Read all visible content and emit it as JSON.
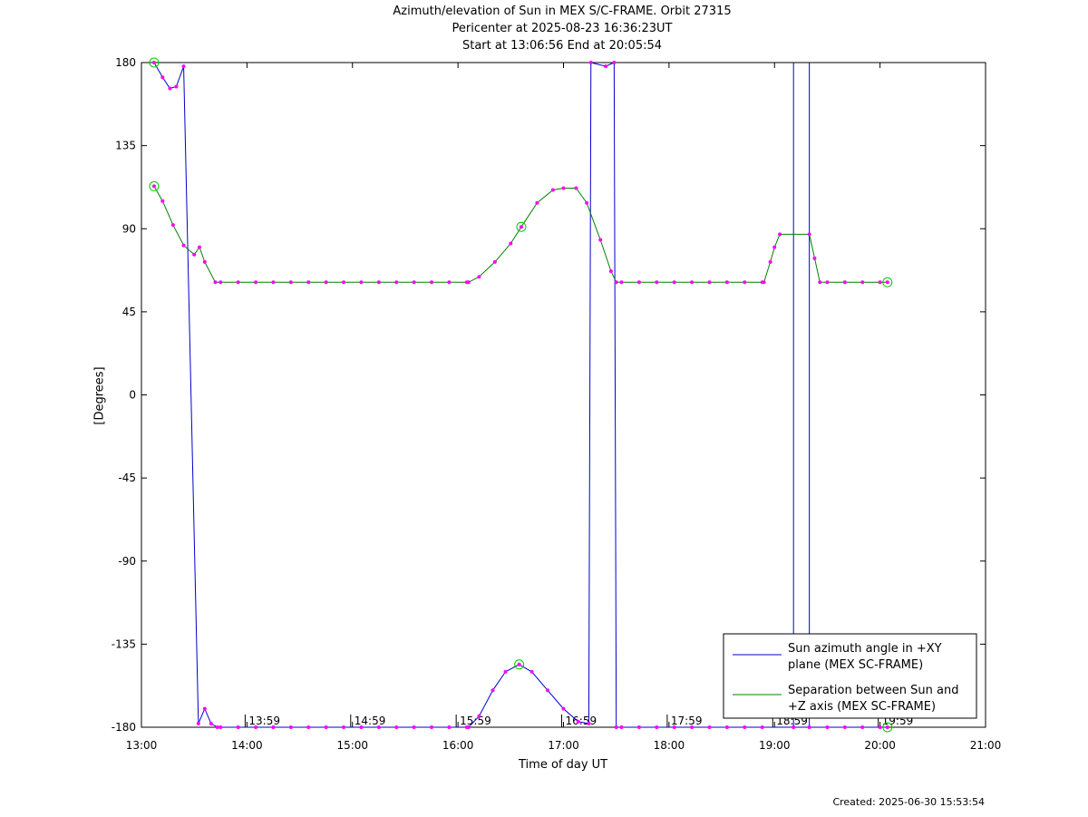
{
  "chart_data": {
    "type": "line",
    "title": [
      "Azimuth/elevation of Sun in MEX S/C-FRAME.  Orbit 27315",
      "Pericenter at 2025-08-23 16:36:23UT",
      "Start at 13:06:56 End at 20:05:54"
    ],
    "xlabel": "Time of day UT",
    "ylabel": "[Degrees]",
    "xlim": [
      13,
      21
    ],
    "ylim": [
      -180,
      180
    ],
    "x_ticks": [
      13,
      14,
      15,
      16,
      17,
      18,
      19,
      20,
      21
    ],
    "x_tick_labels": [
      "13:00",
      "14:00",
      "15:00",
      "16:00",
      "17:00",
      "18:00",
      "19:00",
      "20:00",
      "21:00"
    ],
    "y_ticks": [
      180,
      135,
      90,
      45,
      0,
      -45,
      -90,
      -135,
      -180
    ],
    "y_tick_labels": [
      "180",
      "135",
      "90",
      "45",
      "0",
      "-45",
      "-90",
      "-135",
      "-180"
    ],
    "grid": false,
    "legend_position": "bottom-right",
    "hour_markers": [
      {
        "x": 13.983,
        "label": "13:59"
      },
      {
        "x": 14.983,
        "label": "14:59"
      },
      {
        "x": 15.983,
        "label": "15:59"
      },
      {
        "x": 16.983,
        "label": "16:59"
      },
      {
        "x": 17.983,
        "label": "17:59"
      },
      {
        "x": 18.983,
        "label": "18:59"
      },
      {
        "x": 19.983,
        "label": "19:59"
      }
    ],
    "series": [
      {
        "name": "Sun azimuth angle in +XY plane (MEX SC-FRAME)",
        "color": "#0000cc",
        "segments": [
          [
            [
              13.12,
              180
            ],
            [
              13.2,
              172
            ],
            [
              13.27,
              166
            ],
            [
              13.33,
              167
            ],
            [
              13.4,
              178
            ]
          ],
          [
            [
              13.54,
              -178
            ],
            [
              13.6,
              -170
            ],
            [
              13.66,
              -178
            ],
            [
              13.72,
              -180
            ],
            [
              16.1,
              -180
            ],
            [
              16.2,
              -174
            ],
            [
              16.33,
              -160
            ],
            [
              16.45,
              -150
            ],
            [
              16.58,
              -146
            ],
            [
              16.7,
              -150
            ],
            [
              16.85,
              -160
            ],
            [
              17.0,
              -170
            ],
            [
              17.14,
              -177
            ],
            [
              17.24,
              -178
            ]
          ],
          [
            [
              17.26,
              180
            ],
            [
              17.4,
              178
            ],
            [
              17.48,
              180
            ]
          ],
          [
            [
              17.5,
              -180
            ],
            [
              19.18,
              -180
            ]
          ],
          [
            [
              19.33,
              -180
            ],
            [
              20.07,
              -180
            ]
          ]
        ]
      },
      {
        "name": "Separation between Sun and +Z axis (MEX SC-FRAME)",
        "color": "#008000",
        "points": [
          [
            13.12,
            113
          ],
          [
            13.2,
            105
          ],
          [
            13.3,
            92
          ],
          [
            13.4,
            81
          ],
          [
            13.5,
            76
          ],
          [
            13.55,
            80
          ],
          [
            13.6,
            72
          ],
          [
            13.7,
            61
          ],
          [
            16.1,
            61
          ],
          [
            16.2,
            64
          ],
          [
            16.35,
            72
          ],
          [
            16.5,
            82
          ],
          [
            16.6,
            91
          ],
          [
            16.75,
            104
          ],
          [
            16.9,
            111
          ],
          [
            17.0,
            112
          ],
          [
            17.12,
            112
          ],
          [
            17.22,
            104
          ],
          [
            17.35,
            84
          ],
          [
            17.45,
            67
          ],
          [
            17.5,
            61
          ],
          [
            18.9,
            61
          ],
          [
            18.96,
            72
          ],
          [
            19.0,
            80
          ],
          [
            19.05,
            87
          ],
          [
            19.33,
            87
          ],
          [
            19.38,
            74
          ],
          [
            19.43,
            61
          ],
          [
            20.07,
            61
          ]
        ]
      }
    ]
  },
  "footer": {
    "created": "Created: 2025-06-30 15:53:54"
  }
}
